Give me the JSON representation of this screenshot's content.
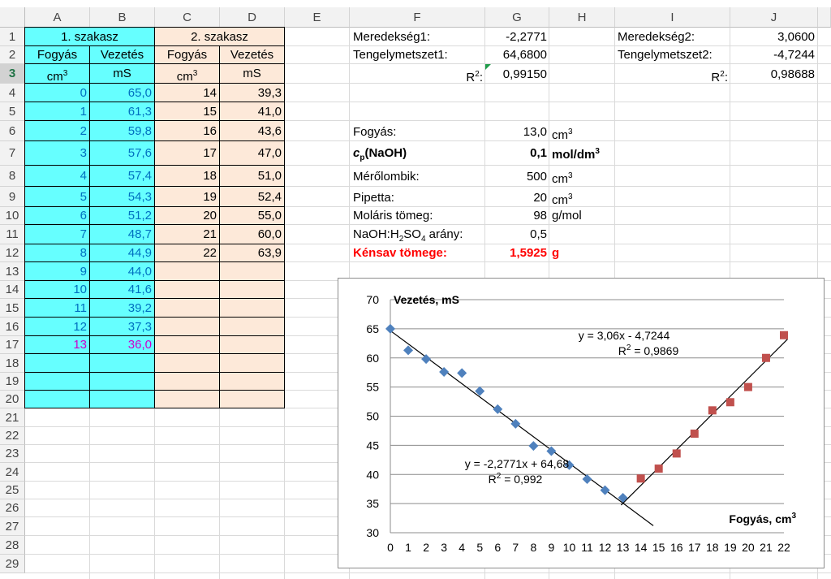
{
  "columns": [
    "A",
    "B",
    "C",
    "D",
    "E",
    "F",
    "G",
    "H",
    "I",
    "J"
  ],
  "rows": [
    "1",
    "2",
    "3",
    "4",
    "5",
    "6",
    "7",
    "8",
    "9",
    "10",
    "11",
    "12",
    "13",
    "14",
    "15",
    "16",
    "17",
    "18",
    "19",
    "20",
    "21",
    "22",
    "23",
    "24",
    "25",
    "26",
    "27",
    "28",
    "29"
  ],
  "table": {
    "section1_title": "1. szakasz",
    "section2_title": "2. szakasz",
    "hdr_fogyas": "Fogyás",
    "hdr_vezetes": "Vezetés",
    "unit_cm": "cm",
    "unit_cm_sup": "3",
    "unit_ms": "mS",
    "s1_fogyas": [
      "0",
      "1",
      "2",
      "3",
      "4",
      "5",
      "6",
      "7",
      "8",
      "9",
      "10",
      "11",
      "12",
      "13"
    ],
    "s1_vezetes": [
      "65,0",
      "61,3",
      "59,8",
      "57,6",
      "57,4",
      "54,3",
      "51,2",
      "48,7",
      "44,9",
      "44,0",
      "41,6",
      "39,2",
      "37,3",
      "36,0"
    ],
    "s2_fogyas": [
      "14",
      "15",
      "16",
      "17",
      "18",
      "19",
      "20",
      "21",
      "22"
    ],
    "s2_vezetes": [
      "39,3",
      "41,0",
      "43,6",
      "47,0",
      "51,0",
      "52,4",
      "55,0",
      "60,0",
      "63,9"
    ]
  },
  "calc": {
    "meredekseg1_label": "Meredekség1:",
    "meredekseg1_value": "-2,2771",
    "tengely1_label": "Tengelymetszet1:",
    "tengely1_value": "64,6800",
    "r2_1_label": "R",
    "r2_1_value": "0,99150",
    "meredekseg2_label": "Meredekség2:",
    "meredekseg2_value": "3,0600",
    "tengely2_label": "Tengelymetszet2:",
    "tengely2_value": "-4,7244",
    "r2_2_label": "R",
    "r2_2_value": "0,98688",
    "r_sup": "2",
    "r_colon": ":",
    "fogyas_label": "Fogyás:",
    "fogyas_value": "13,0",
    "fogyas_unit": "cm",
    "cp_label_c": "c",
    "cp_label_sub": "p",
    "cp_label_rest": "(NaOH)",
    "cp_value": "0,1",
    "cp_unit": "mol/dm",
    "merolombik_label": "Mérőlombik:",
    "merolombik_value": "500",
    "merolombik_unit": "cm",
    "pipetta_label": "Pipetta:",
    "pipetta_value": "20",
    "pipetta_unit": "cm",
    "molaris_label": "Moláris tömeg:",
    "molaris_value": "98",
    "molaris_unit": "g/mol",
    "arany_label_a": "NaOH:H",
    "arany_sub1": "2",
    "arany_label_b": "SO",
    "arany_sub2": "4",
    "arany_label_c": " arány:",
    "arany_value": "0,5",
    "kensav_label": "Kénsav tömege:",
    "kensav_value": "1,5925",
    "kensav_unit": "g",
    "sup3": "3"
  },
  "colors": {
    "cyan": "#66ffff",
    "peach": "#fde9d9",
    "blue_text": "#0070c0",
    "magenta_text": "#cc00cc",
    "red_text": "#ff0000",
    "series1": "#4f81bd",
    "series2": "#c0504d"
  },
  "chart_data": {
    "type": "scatter",
    "ylabel": "Vezetés, mS",
    "xlabel": "Fogyás, cm",
    "xlabel_sup": "3",
    "xlim": [
      0,
      22
    ],
    "ylim": [
      30,
      70
    ],
    "xticks": [
      0,
      1,
      2,
      3,
      4,
      5,
      6,
      7,
      8,
      9,
      10,
      11,
      12,
      13,
      14,
      15,
      16,
      17,
      18,
      19,
      20,
      21,
      22
    ],
    "yticks": [
      30,
      35,
      40,
      45,
      50,
      55,
      60,
      65,
      70
    ],
    "grid": "horizontal",
    "series": [
      {
        "marker": "diamond",
        "color": "#4f81bd",
        "x": [
          0,
          1,
          2,
          3,
          4,
          5,
          6,
          7,
          8,
          9,
          10,
          11,
          12,
          13
        ],
        "y": [
          65.0,
          61.3,
          59.8,
          57.6,
          57.4,
          54.3,
          51.2,
          48.7,
          44.9,
          44.0,
          41.6,
          39.2,
          37.3,
          36.0
        ]
      },
      {
        "marker": "square",
        "color": "#c0504d",
        "x": [
          14,
          15,
          16,
          17,
          18,
          19,
          20,
          21,
          22
        ],
        "y": [
          39.3,
          41.0,
          43.6,
          47.0,
          51.0,
          52.4,
          55.0,
          60.0,
          63.9
        ]
      }
    ],
    "trendlines": [
      {
        "slope": -2.2771,
        "intercept": 64.68,
        "x_range": [
          0,
          14.7
        ]
      },
      {
        "slope": 3.06,
        "intercept": -4.7244,
        "x_range": [
          12.9,
          22.2
        ]
      }
    ],
    "annotations": [
      {
        "eq": "y = -2,2771x + 64,68",
        "r2_prefix": "R",
        "r2_sup": "2",
        "r2_rest": " = 0,992"
      },
      {
        "eq": "y = 3,06x - 4,7244",
        "r2_prefix": "R",
        "r2_sup": "2",
        "r2_rest": " = 0,9869"
      }
    ]
  }
}
